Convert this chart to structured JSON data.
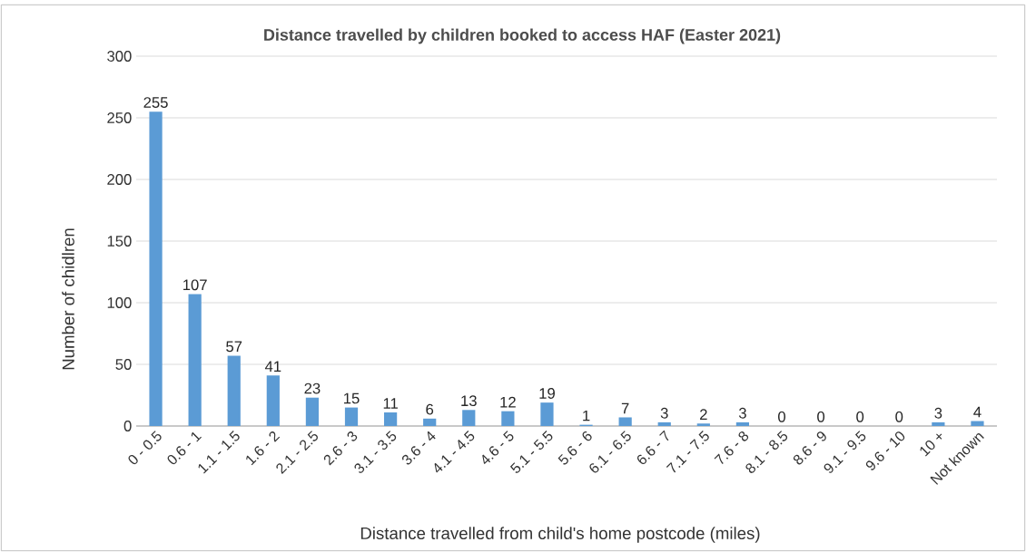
{
  "chart_data": {
    "type": "bar",
    "title": "Distance travelled by children booked to access HAF (Easter 2021)",
    "xlabel": "Distance travelled from child's home postcode (miles)",
    "ylabel": "Number of chidlren",
    "categories": [
      "0 - 0.5",
      "0.6 - 1",
      "1.1 - 1.5",
      "1.6 - 2",
      "2.1 - 2.5",
      "2.6 - 3",
      "3.1 - 3.5",
      "3.6 - 4",
      "4.1 - 4.5",
      "4.6 - 5",
      "5.1 - 5.5",
      "5.6 - 6",
      "6.1 - 6.5",
      "6.6 - 7",
      "7.1 - 7.5",
      "7.6 - 8",
      "8.1 - 8.5",
      "8.6 - 9",
      "9.1 - 9.5",
      "9.6 - 10",
      "10 +",
      "Not known"
    ],
    "values": [
      255,
      107,
      57,
      41,
      23,
      15,
      11,
      6,
      13,
      12,
      19,
      1,
      7,
      3,
      2,
      3,
      0,
      0,
      0,
      0,
      3,
      4
    ],
    "color": "#5b9bd5",
    "ylim": [
      0,
      300
    ],
    "yticks": [
      0,
      50,
      100,
      150,
      200,
      250,
      300
    ],
    "grid": "y",
    "data_labels": true
  }
}
